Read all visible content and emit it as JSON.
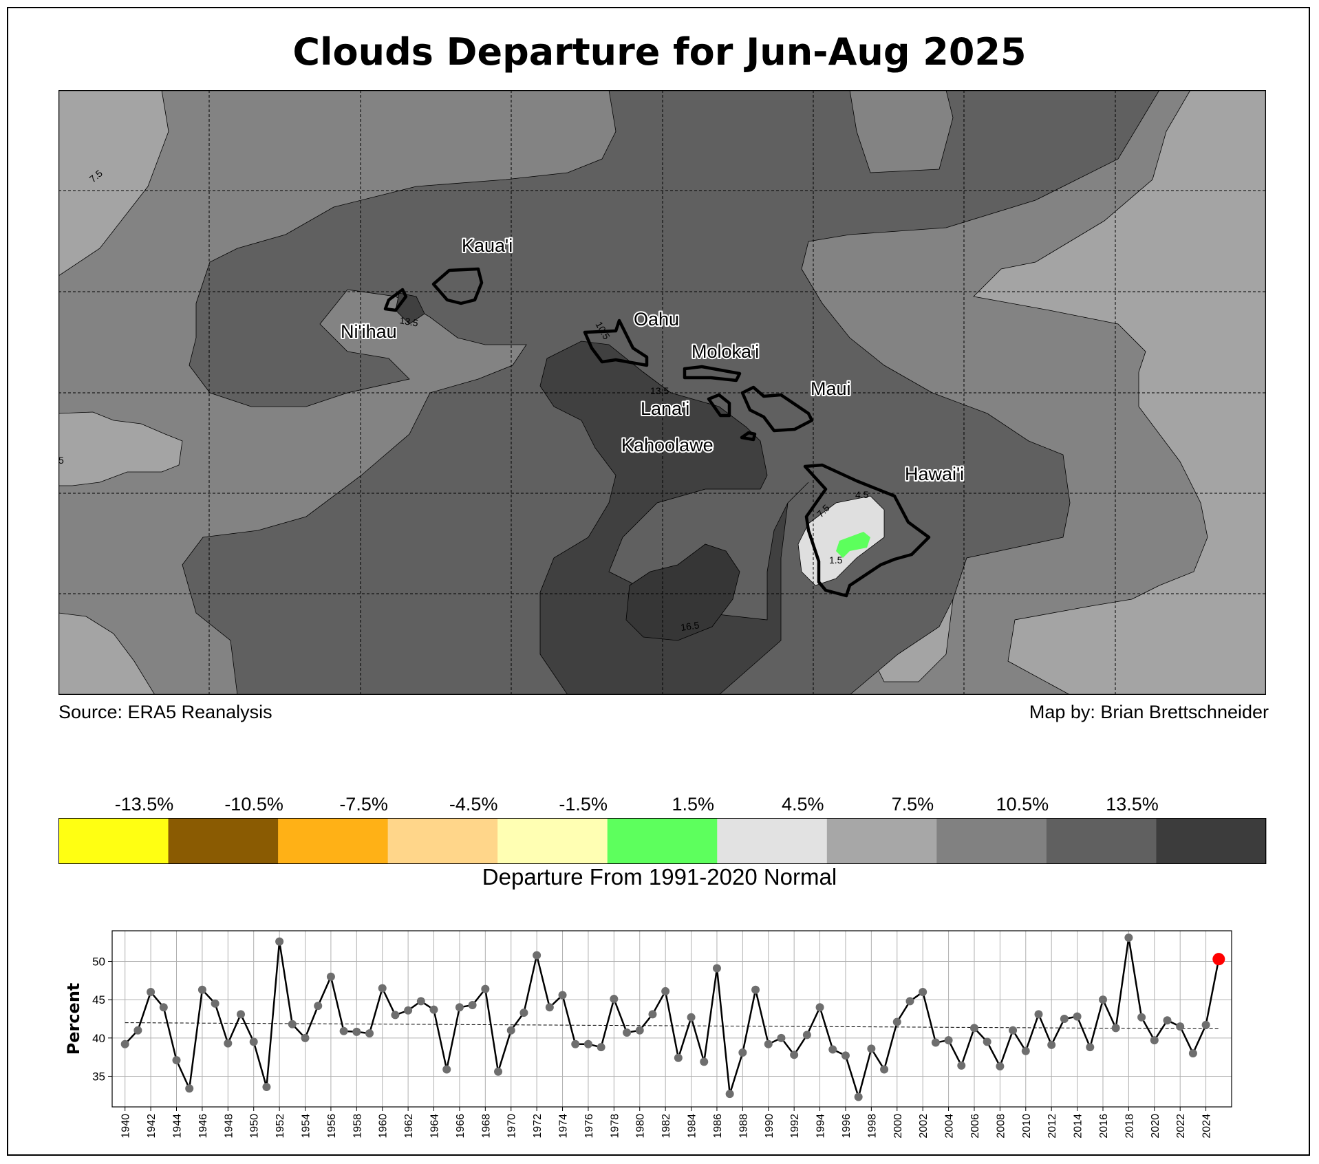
{
  "title": "Clouds Departure for Jun-Aug 2025",
  "source_text": "Source: ERA5 Reanalysis",
  "credit_text": "Map by: Brian Brettschneider",
  "map": {
    "islands": [
      "Kaua'i",
      "Ni'ihau",
      "Oahu",
      "Moloka'i",
      "Maui",
      "Lana'i",
      "Kahoolawe",
      "Hawai'i"
    ],
    "contour_labels": [
      "7.5",
      "5",
      "13.5",
      "10.5",
      "13.5",
      "7.5",
      "4.5",
      "1.5",
      "16.5"
    ],
    "fill_colors": {
      "4.5": "#a4a4a4",
      "7.5": "#838383",
      "10.5": "#606060",
      "13.5": "#404040",
      "16.5": "#363636",
      "1.5": "#dfdfdf",
      "hawaii_green": "#5cff5c"
    }
  },
  "colorbar": {
    "title": "Departure From 1991-2020 Normal",
    "tick_labels": [
      "-13.5%",
      "-10.5%",
      "-7.5%",
      "-4.5%",
      "-1.5%",
      "1.5%",
      "4.5%",
      "7.5%",
      "10.5%",
      "13.5%"
    ],
    "colors": [
      "#ffff12",
      "#8a5b02",
      "#ffb116",
      "#ffd68a",
      "#ffffb3",
      "#5dff5d",
      "#e2e2e2",
      "#a7a7a7",
      "#818181",
      "#606060",
      "#3c3c3c"
    ]
  },
  "chart_data": {
    "type": "line",
    "title": "",
    "xlabel": "",
    "ylabel": "Percent",
    "xlim": [
      1939,
      2026
    ],
    "ylim": [
      31,
      54
    ],
    "yticks": [
      35,
      40,
      45,
      50
    ],
    "xticks": [
      1940,
      1942,
      1944,
      1946,
      1948,
      1950,
      1952,
      1954,
      1956,
      1958,
      1960,
      1962,
      1964,
      1966,
      1968,
      1970,
      1972,
      1974,
      1976,
      1978,
      1980,
      1982,
      1984,
      1986,
      1988,
      1990,
      1992,
      1994,
      1996,
      1998,
      2000,
      2002,
      2004,
      2006,
      2008,
      2010,
      2012,
      2014,
      2016,
      2018,
      2020,
      2022,
      2024
    ],
    "grid": true,
    "x": [
      1940,
      1941,
      1942,
      1943,
      1944,
      1945,
      1946,
      1947,
      1948,
      1949,
      1950,
      1951,
      1952,
      1953,
      1954,
      1955,
      1956,
      1957,
      1958,
      1959,
      1960,
      1961,
      1962,
      1963,
      1964,
      1965,
      1966,
      1967,
      1968,
      1969,
      1970,
      1971,
      1972,
      1973,
      1974,
      1975,
      1976,
      1977,
      1978,
      1979,
      1980,
      1981,
      1982,
      1983,
      1984,
      1985,
      1986,
      1987,
      1988,
      1989,
      1990,
      1991,
      1992,
      1993,
      1994,
      1995,
      1996,
      1997,
      1998,
      1999,
      2000,
      2001,
      2002,
      2003,
      2004,
      2005,
      2006,
      2007,
      2008,
      2009,
      2010,
      2011,
      2012,
      2013,
      2014,
      2015,
      2016,
      2017,
      2018,
      2019,
      2020,
      2021,
      2022,
      2023,
      2024,
      2025
    ],
    "series": [
      {
        "values": [
          39.2,
          41.0,
          46.0,
          44.0,
          37.1,
          33.4,
          46.3,
          44.5,
          39.3,
          43.1,
          39.5,
          33.6,
          52.6,
          41.8,
          40.0,
          44.2,
          48.0,
          40.9,
          40.8,
          40.6,
          46.5,
          43.0,
          43.6,
          44.8,
          43.7,
          35.9,
          44.0,
          44.3,
          46.4,
          35.6,
          41.0,
          43.3,
          50.8,
          44.0,
          45.6,
          39.2,
          39.2,
          38.8,
          45.1,
          40.7,
          41.0,
          43.1,
          46.1,
          37.4,
          42.7,
          36.9,
          49.1,
          32.7,
          38.1,
          46.3,
          39.2,
          40.0,
          37.8,
          40.4,
          44.0,
          38.5,
          37.7,
          32.3,
          38.6,
          35.9,
          42.1,
          44.8,
          46.0,
          39.4,
          39.7,
          36.4,
          41.3,
          39.5,
          36.3,
          41.0,
          38.3,
          43.1,
          39.1,
          42.5,
          42.8,
          38.8,
          45.0,
          41.3,
          53.1,
          42.7,
          39.7,
          42.3,
          41.5,
          38.0,
          41.7,
          50.3
        ]
      }
    ],
    "trend": [
      42.0,
      41.2
    ],
    "marker_color": "#6e6e6e",
    "highlight_color": "#ff0000",
    "highlight_year": 2025
  }
}
